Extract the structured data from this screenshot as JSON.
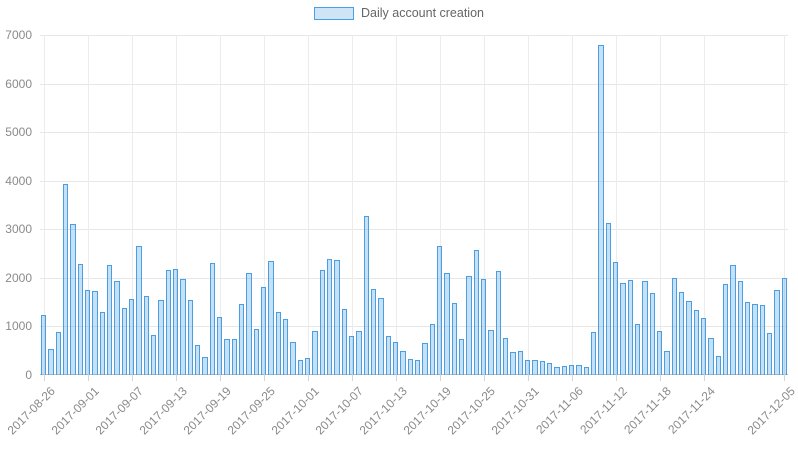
{
  "legend": {
    "label": "Daily account creation",
    "swatch_fill": "#cfe5f7",
    "swatch_border": "#4aa0e4"
  },
  "chart_data": {
    "type": "bar",
    "title": "",
    "series_name": "Daily account creation",
    "x": [
      "2017-08-26",
      "2017-08-27",
      "2017-08-28",
      "2017-08-29",
      "2017-08-30",
      "2017-08-31",
      "2017-09-01",
      "2017-09-02",
      "2017-09-03",
      "2017-09-04",
      "2017-09-05",
      "2017-09-06",
      "2017-09-07",
      "2017-09-08",
      "2017-09-09",
      "2017-09-10",
      "2017-09-11",
      "2017-09-12",
      "2017-09-13",
      "2017-09-14",
      "2017-09-15",
      "2017-09-16",
      "2017-09-17",
      "2017-09-18",
      "2017-09-19",
      "2017-09-20",
      "2017-09-21",
      "2017-09-22",
      "2017-09-23",
      "2017-09-24",
      "2017-09-25",
      "2017-09-26",
      "2017-09-27",
      "2017-09-28",
      "2017-09-29",
      "2017-09-30",
      "2017-10-01",
      "2017-10-02",
      "2017-10-03",
      "2017-10-04",
      "2017-10-05",
      "2017-10-06",
      "2017-10-07",
      "2017-10-08",
      "2017-10-09",
      "2017-10-10",
      "2017-10-11",
      "2017-10-12",
      "2017-10-13",
      "2017-10-14",
      "2017-10-15",
      "2017-10-16",
      "2017-10-17",
      "2017-10-18",
      "2017-10-19",
      "2017-10-20",
      "2017-10-21",
      "2017-10-22",
      "2017-10-23",
      "2017-10-24",
      "2017-10-25",
      "2017-10-26",
      "2017-10-27",
      "2017-10-28",
      "2017-10-29",
      "2017-10-30",
      "2017-10-31",
      "2017-11-01",
      "2017-11-02",
      "2017-11-03",
      "2017-11-04",
      "2017-11-05",
      "2017-11-06",
      "2017-11-07",
      "2017-11-08",
      "2017-11-09",
      "2017-11-10",
      "2017-11-11",
      "2017-11-12",
      "2017-11-13",
      "2017-11-14",
      "2017-11-15",
      "2017-11-16",
      "2017-11-17",
      "2017-11-18",
      "2017-11-19",
      "2017-11-20",
      "2017-11-21",
      "2017-11-22",
      "2017-11-23",
      "2017-11-24",
      "2017-11-25",
      "2017-11-26",
      "2017-11-27",
      "2017-11-28",
      "2017-11-29",
      "2017-11-30",
      "2017-12-01",
      "2017-12-02",
      "2017-12-03",
      "2017-12-04",
      "2017-12-05"
    ],
    "values": [
      1230,
      530,
      890,
      3930,
      3110,
      2280,
      1750,
      1740,
      1290,
      2260,
      1940,
      1370,
      1560,
      2660,
      1630,
      820,
      1540,
      2160,
      2190,
      1980,
      1540,
      620,
      380,
      2300,
      1200,
      740,
      750,
      1460,
      2110,
      950,
      1820,
      2350,
      1300,
      1150,
      670,
      310,
      360,
      900,
      2170,
      2390,
      2360,
      1350,
      810,
      910,
      3270,
      1770,
      1580,
      800,
      690,
      500,
      340,
      310,
      650,
      1060,
      2660,
      2110,
      1490,
      740,
      2040,
      2570,
      1970,
      930,
      2140,
      760,
      470,
      500,
      310,
      300,
      280,
      250,
      170,
      190,
      200,
      210,
      160,
      890,
      6800,
      3120,
      2330,
      1890,
      1960,
      1060,
      1940,
      1680,
      910,
      500,
      1990,
      1700,
      1530,
      1340,
      1180,
      770,
      390,
      1880,
      2270,
      1940,
      1500,
      1460,
      1440,
      870,
      1760,
      2000
    ],
    "xtick_labels": [
      "2017-08-26",
      "2017-09-01",
      "2017-09-07",
      "2017-09-13",
      "2017-09-19",
      "2017-09-25",
      "2017-10-01",
      "2017-10-07",
      "2017-10-13",
      "2017-10-19",
      "2017-10-25",
      "2017-10-31",
      "2017-11-06",
      "2017-11-12",
      "2017-11-18",
      "2017-11-24",
      "2017-12-05"
    ],
    "xtick_indices": [
      0,
      6,
      12,
      18,
      24,
      30,
      36,
      42,
      48,
      54,
      60,
      66,
      72,
      78,
      84,
      90,
      101
    ],
    "yticks": [
      0,
      1000,
      2000,
      3000,
      4000,
      5000,
      6000,
      7000
    ],
    "ylim": [
      0,
      7000
    ],
    "xlabel": "",
    "ylabel": "",
    "grid": true,
    "legend_position": "top-center",
    "bar_fill": "rgba(77,158,227,0.32)",
    "bar_border": "#4a9fe4",
    "grid_color": "#e7e7e7",
    "axis_line_color": "#bdbdbd",
    "tick_text_color": "#8a8a8a"
  }
}
